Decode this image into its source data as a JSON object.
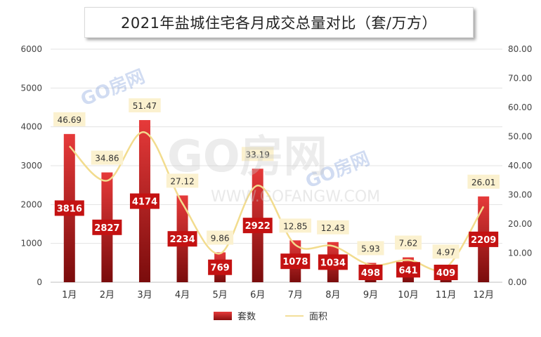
{
  "title": "2021年盐城住宅各月成交总量对比（套/万方）",
  "watermark": {
    "main": "GO房网",
    "url": "WWW.GOFANGW.COM"
  },
  "colors": {
    "bar_top": "#e63a3a",
    "bar_bottom": "#7a0c0c",
    "bar_label_bg": "#c41212",
    "line": "#f2dc8e",
    "line_label_bg": "#fbf1cf"
  },
  "chart_data": {
    "type": "bar",
    "categories": [
      "1月",
      "2月",
      "3月",
      "4月",
      "5月",
      "6月",
      "7月",
      "8月",
      "9月",
      "10月",
      "11月",
      "12月"
    ],
    "series": [
      {
        "name": "套数",
        "type": "bar",
        "axis": "left",
        "values": [
          3816,
          2827,
          4174,
          2234,
          769,
          2922,
          1078,
          1034,
          498,
          641,
          409,
          2209
        ]
      },
      {
        "name": "面积",
        "type": "line",
        "axis": "right",
        "values": [
          46.69,
          34.86,
          51.47,
          27.12,
          9.86,
          33.19,
          12.85,
          12.43,
          5.93,
          7.62,
          4.97,
          26.01
        ]
      }
    ],
    "y_left": {
      "min": 0,
      "max": 6000,
      "ticks": [
        "0",
        "1000",
        "2000",
        "3000",
        "4000",
        "5000",
        "6000"
      ]
    },
    "y_right": {
      "min": 0,
      "max": 80,
      "ticks": [
        "0.00",
        "10.00",
        "20.00",
        "30.00",
        "40.00",
        "50.00",
        "60.00",
        "70.00",
        "80.00"
      ]
    },
    "grid": true,
    "legend_position": "bottom"
  }
}
